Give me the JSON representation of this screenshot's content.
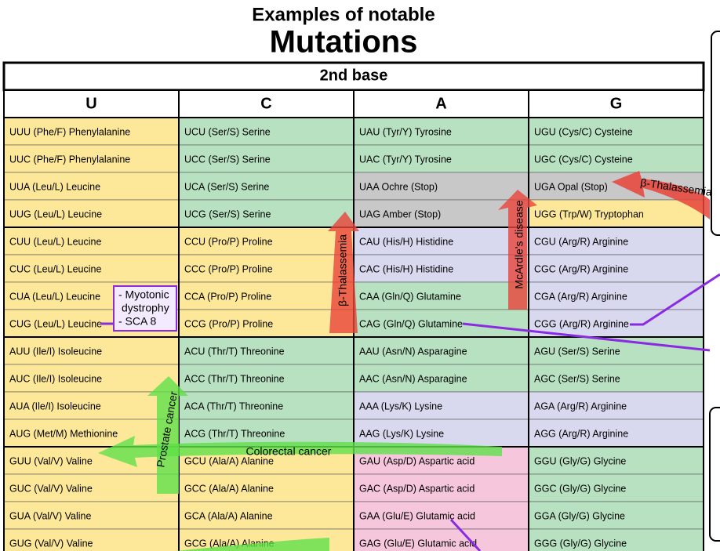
{
  "title": {
    "line1": "Examples of notable",
    "line2": "Mutations"
  },
  "table": {
    "header": "2nd base",
    "columns": [
      "U",
      "C",
      "A",
      "G"
    ],
    "rows": [
      [
        "UUU (Phe/F) Phenylalanine",
        "UCU (Ser/S) Serine",
        "UAU (Tyr/Y) Tyrosine",
        "UGU (Cys/C) Cysteine"
      ],
      [
        "UUC (Phe/F) Phenylalanine",
        "UCC (Ser/S) Serine",
        "UAC (Tyr/Y) Tyrosine",
        "UGC (Cys/C) Cysteine"
      ],
      [
        "UUA (Leu/L) Leucine",
        "UCA (Ser/S) Serine",
        "UAA Ochre (Stop)",
        "UGA Opal (Stop)"
      ],
      [
        "UUG (Leu/L) Leucine",
        "UCG (Ser/S) Serine",
        "UAG Amber (Stop)",
        "UGG (Trp/W) Tryptophan"
      ],
      [
        "CUU (Leu/L) Leucine",
        "CCU (Pro/P) Proline",
        "CAU (His/H) Histidine",
        "CGU (Arg/R) Arginine"
      ],
      [
        "CUC (Leu/L) Leucine",
        "CCC (Pro/P) Proline",
        "CAC (His/H) Histidine",
        "CGC (Arg/R) Arginine"
      ],
      [
        "CUA (Leu/L) Leucine",
        "CCA (Pro/P) Proline",
        "CAA (Gln/Q) Glutamine",
        "CGA (Arg/R) Arginine"
      ],
      [
        "CUG (Leu/L) Leucine",
        "CCG (Pro/P) Proline",
        "CAG (Gln/Q) Glutamine",
        "CGG (Arg/R) Arginine"
      ],
      [
        "AUU (Ile/I) Isoleucine",
        "ACU (Thr/T) Threonine",
        "AAU (Asn/N) Asparagine",
        "AGU (Ser/S) Serine"
      ],
      [
        "AUC (Ile/I) Isoleucine",
        "ACC (Thr/T) Threonine",
        "AAC (Asn/N) Asparagine",
        "AGC (Ser/S) Serine"
      ],
      [
        "AUA (Ile/I) Isoleucine",
        "ACA (Thr/T) Threonine",
        "AAA (Lys/K) Lysine",
        "AGA (Arg/R) Arginine"
      ],
      [
        "AUG (Met/M) Methionine",
        "ACG (Thr/T) Threonine",
        "AAG (Lys/K) Lysine",
        "AGG (Arg/R) Arginine"
      ],
      [
        "GUU (Val/V) Valine",
        "GCU (Ala/A) Alanine",
        "GAU (Asp/D) Aspartic acid",
        "GGU (Gly/G) Glycine"
      ],
      [
        "GUC (Val/V) Valine",
        "GCC (Ala/A) Alanine",
        "GAC (Asp/D) Aspartic acid",
        "GGC (Gly/G) Glycine"
      ],
      [
        "GUA (Val/V) Valine",
        "GCA (Ala/A) Alanine",
        "GAA (Glu/E) Glutamic acid",
        "GGA (Gly/G) Glycine"
      ],
      [
        "GUG (Val/V) Valine",
        "GCG (Ala/A) Alanine",
        "GAG (Glu/E) Glutamic acid",
        "GGG (Gly/G) Glycine"
      ]
    ]
  },
  "annotations": {
    "myotonic": [
      "- Myotonic",
      "dystrophy",
      "- SCA 8"
    ],
    "thalassemia_1": "β-Thalassemia",
    "thalassemia_2": "β-Thalassemia",
    "mcardle": "McArdle's disease",
    "prostate": "Prostate cancer",
    "colorectal": "Colorectal cancer"
  }
}
